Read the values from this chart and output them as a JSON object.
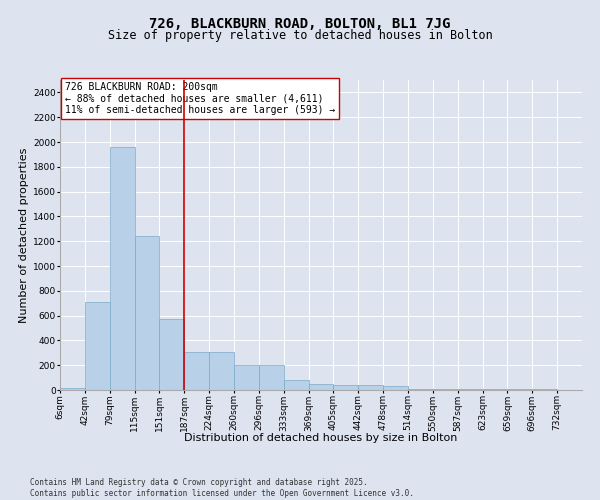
{
  "title": "726, BLACKBURN ROAD, BOLTON, BL1 7JG",
  "subtitle": "Size of property relative to detached houses in Bolton",
  "xlabel": "Distribution of detached houses by size in Bolton",
  "ylabel": "Number of detached properties",
  "bin_labels": [
    "6sqm",
    "42sqm",
    "79sqm",
    "115sqm",
    "151sqm",
    "187sqm",
    "224sqm",
    "260sqm",
    "296sqm",
    "333sqm",
    "369sqm",
    "405sqm",
    "442sqm",
    "478sqm",
    "514sqm",
    "550sqm",
    "587sqm",
    "623sqm",
    "659sqm",
    "696sqm",
    "732sqm"
  ],
  "bar_values": [
    15,
    710,
    1960,
    1240,
    575,
    305,
    305,
    200,
    200,
    80,
    50,
    40,
    40,
    35,
    10,
    10,
    10,
    10,
    5,
    5,
    0
  ],
  "bar_color": "#b8d0e8",
  "bar_edgecolor": "#7aaac8",
  "vline_x": 5.0,
  "vline_color": "#cc0000",
  "annotation_text": "726 BLACKBURN ROAD: 200sqm\n← 88% of detached houses are smaller (4,611)\n11% of semi-detached houses are larger (593) →",
  "annotation_box_color": "white",
  "annotation_box_edgecolor": "#cc0000",
  "ylim": [
    0,
    2500
  ],
  "yticks": [
    0,
    200,
    400,
    600,
    800,
    1000,
    1200,
    1400,
    1600,
    1800,
    2000,
    2200,
    2400
  ],
  "background_color": "#dde4f0",
  "grid_color": "white",
  "footer": "Contains HM Land Registry data © Crown copyright and database right 2025.\nContains public sector information licensed under the Open Government Licence v3.0.",
  "title_fontsize": 10,
  "subtitle_fontsize": 8.5,
  "xlabel_fontsize": 8,
  "ylabel_fontsize": 8,
  "tick_fontsize": 6.5,
  "annotation_fontsize": 7,
  "footer_fontsize": 5.5
}
